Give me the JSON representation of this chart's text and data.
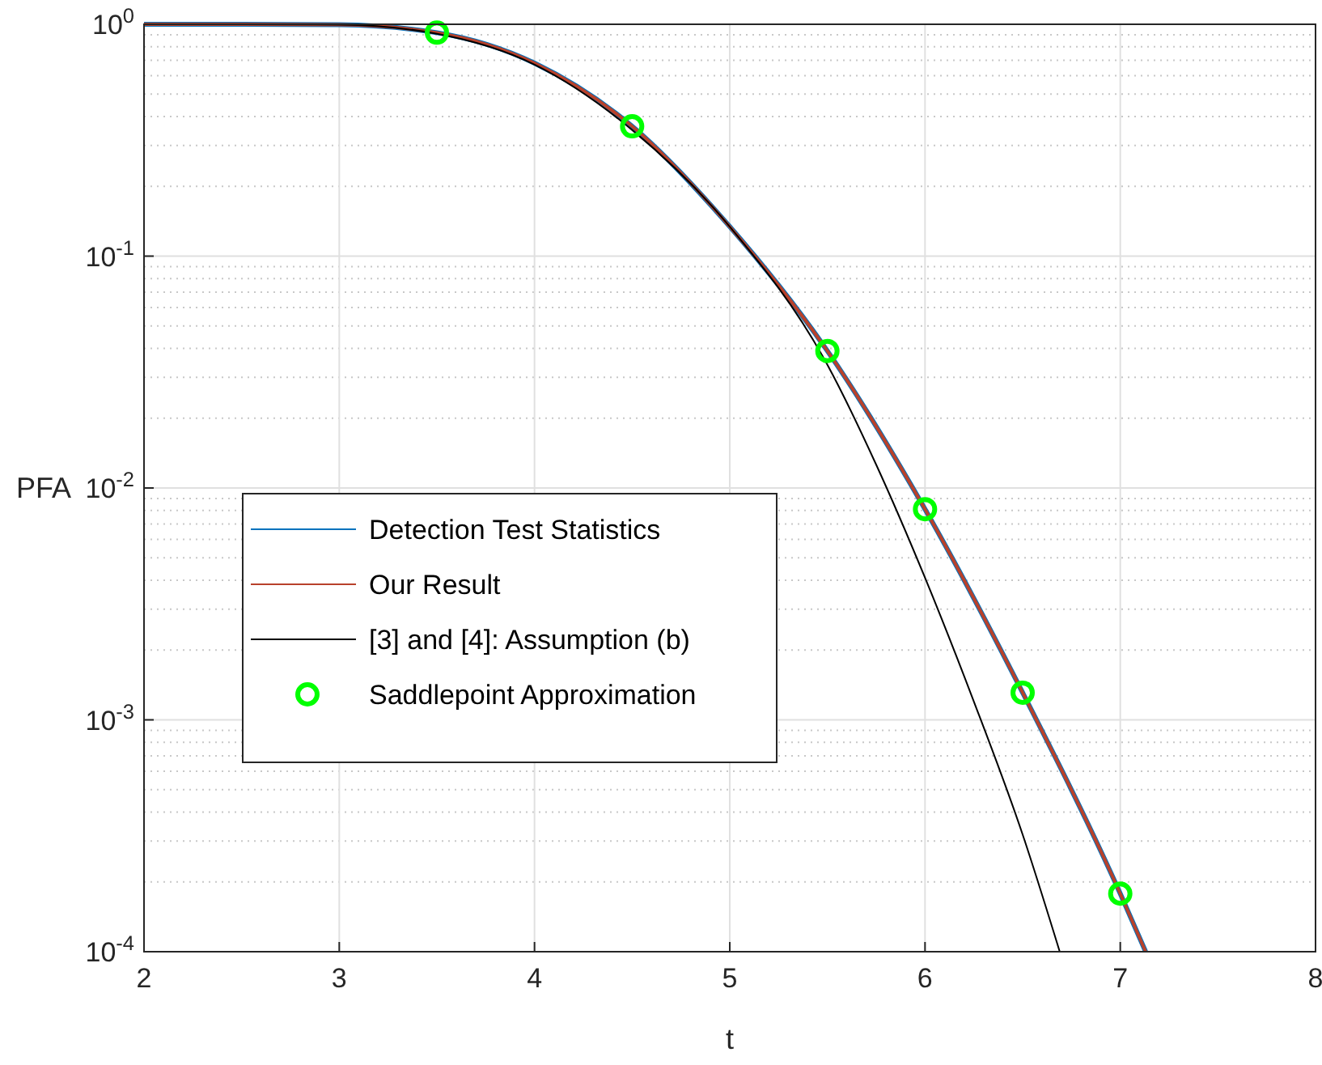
{
  "chart_data": {
    "type": "line",
    "xlabel": "t",
    "ylabel": "PFA",
    "log": "y",
    "grid": true,
    "legend": "left",
    "xlim": [
      2,
      8
    ],
    "ylim": [
      0.0001,
      1
    ],
    "xticks": [
      2,
      3,
      4,
      5,
      6,
      7,
      8
    ],
    "yticks": [
      {
        "value": 0.0001,
        "label": "10$^{-4}$"
      },
      {
        "value": 0.001,
        "label": "10$^{-3}$"
      },
      {
        "value": 0.01,
        "label": "10$^{-2}$"
      },
      {
        "value": 0.1,
        "label": "10$^{-1}$"
      },
      {
        "value": 1,
        "label": "10$^{0}$"
      }
    ],
    "series": [
      {
        "name": "Detection Test Statistics",
        "color": "#0072bd",
        "x": [
          2,
          2.5,
          3,
          3.5,
          4,
          4.5,
          5,
          5.5,
          6,
          6.5,
          7,
          7.13
        ],
        "values": [
          1,
          1,
          0.995,
          0.92,
          0.68,
          0.363,
          0.134,
          0.039,
          0.0081,
          0.00131,
          0.000178,
          0.0001
        ]
      },
      {
        "name": "Our Result",
        "color": "#b8412b",
        "x": [
          2,
          2.5,
          3,
          3.5,
          4,
          4.5,
          5,
          5.5,
          6,
          6.5,
          7,
          7.13
        ],
        "values": [
          1,
          1,
          0.995,
          0.92,
          0.68,
          0.363,
          0.134,
          0.039,
          0.0081,
          0.00131,
          0.000178,
          0.0001
        ]
      },
      {
        "name": "[3] and [4]: Assumption (b)",
        "color": "#000000",
        "x": [
          2,
          2.5,
          3,
          3.5,
          4,
          4.5,
          5,
          5.5,
          5.75,
          6,
          6.25,
          6.5,
          6.69
        ],
        "values": [
          1,
          1,
          0.996,
          0.91,
          0.67,
          0.35,
          0.134,
          0.034,
          0.0126,
          0.0041,
          0.0012,
          0.00032,
          0.0001
        ]
      },
      {
        "name": "Saddlepoint Approximation",
        "type": "scatter",
        "marker": "circle",
        "color": "#00ff00",
        "x": [
          3.5,
          4.5,
          5.5,
          6,
          6.5,
          7
        ],
        "values": [
          0.92,
          0.363,
          0.039,
          0.0081,
          0.00131,
          0.000178
        ]
      }
    ]
  }
}
